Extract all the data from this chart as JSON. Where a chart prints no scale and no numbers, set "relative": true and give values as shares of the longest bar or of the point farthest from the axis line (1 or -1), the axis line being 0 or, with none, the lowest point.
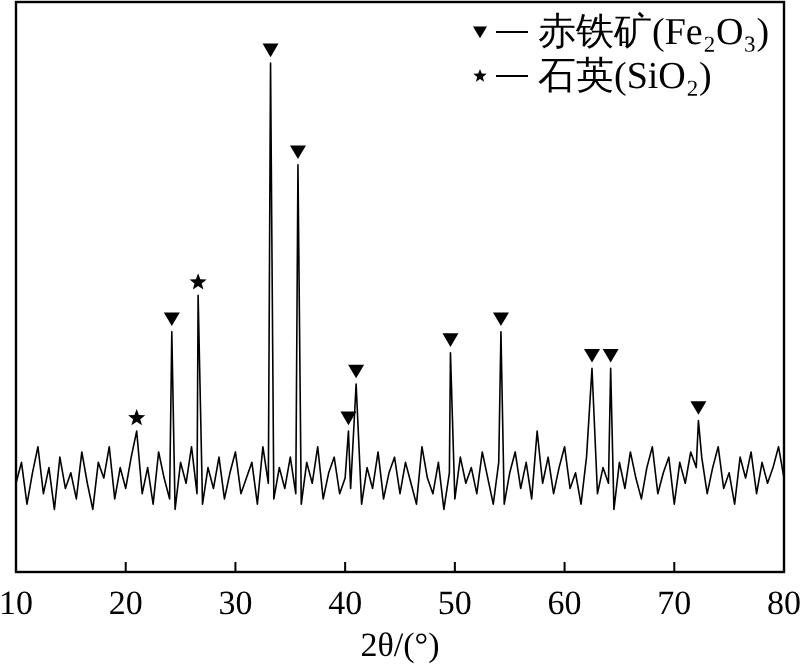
{
  "chart_data": {
    "type": "line",
    "relative": true,
    "xlabel": "2θ/(°)",
    "xlim": [
      10,
      80
    ],
    "xticks": [
      10,
      20,
      30,
      40,
      50,
      60,
      70,
      80
    ],
    "legend": "top right",
    "tick_labels": "x",
    "series": [
      {
        "color": "#000000",
        "x": [
          10,
          10.5,
          11,
          11.5,
          12,
          12.5,
          13,
          13.5,
          14,
          14.5,
          15,
          15.5,
          16,
          16.5,
          17,
          17.5,
          18,
          18.5,
          19,
          19.5,
          20,
          20.5,
          21,
          21.5,
          22,
          22.5,
          23,
          23.5,
          24,
          24.2,
          24.5,
          25,
          25.5,
          26,
          26.5,
          26.6,
          27,
          27.5,
          28,
          28.5,
          29,
          29.5,
          30,
          30.5,
          31,
          31.5,
          32,
          32.5,
          33,
          33.2,
          33.5,
          34,
          34.5,
          35,
          35.5,
          35.7,
          36,
          36.5,
          37,
          37.5,
          38,
          38.5,
          39,
          39.5,
          40,
          40.3,
          40.5,
          41,
          41.5,
          42,
          42.5,
          43,
          43.5,
          44,
          44.5,
          45,
          45.5,
          46,
          46.5,
          47,
          47.5,
          48,
          48.5,
          49,
          49.5,
          49.6,
          50,
          50.5,
          51,
          51.5,
          52,
          52.5,
          53,
          53.5,
          54,
          54.2,
          54.5,
          55,
          55.5,
          56,
          56.5,
          57,
          57.5,
          58,
          58.5,
          59,
          59.5,
          60,
          60.5,
          61,
          61.5,
          62,
          62.5,
          63,
          63.5,
          64,
          64.2,
          64.5,
          65,
          65.5,
          66,
          66.5,
          67,
          67.5,
          68,
          68.5,
          69,
          69.5,
          70,
          70.5,
          71,
          71.5,
          72,
          72.2,
          72.5,
          73,
          73.5,
          74,
          74.5,
          75,
          75.5,
          76,
          76.5,
          77,
          77.5,
          78,
          78.5,
          79,
          79.5,
          80
        ],
        "values": [
          0.17,
          0.21,
          0.13,
          0.19,
          0.24,
          0.15,
          0.2,
          0.12,
          0.22,
          0.16,
          0.19,
          0.14,
          0.23,
          0.17,
          0.12,
          0.21,
          0.18,
          0.24,
          0.14,
          0.2,
          0.16,
          0.22,
          0.27,
          0.15,
          0.2,
          0.13,
          0.23,
          0.18,
          0.14,
          0.46,
          0.12,
          0.21,
          0.17,
          0.24,
          0.15,
          0.53,
          0.13,
          0.2,
          0.16,
          0.22,
          0.14,
          0.19,
          0.23,
          0.15,
          0.18,
          0.21,
          0.13,
          0.24,
          0.17,
          0.975,
          0.14,
          0.2,
          0.16,
          0.22,
          0.15,
          0.78,
          0.13,
          0.21,
          0.17,
          0.24,
          0.14,
          0.19,
          0.22,
          0.15,
          0.18,
          0.27,
          0.16,
          0.36,
          0.13,
          0.2,
          0.16,
          0.23,
          0.14,
          0.19,
          0.22,
          0.15,
          0.21,
          0.17,
          0.13,
          0.24,
          0.18,
          0.15,
          0.21,
          0.12,
          0.19,
          0.42,
          0.14,
          0.22,
          0.17,
          0.2,
          0.15,
          0.23,
          0.18,
          0.13,
          0.21,
          0.46,
          0.13,
          0.19,
          0.23,
          0.16,
          0.21,
          0.14,
          0.27,
          0.17,
          0.22,
          0.15,
          0.2,
          0.24,
          0.16,
          0.19,
          0.13,
          0.22,
          0.39,
          0.15,
          0.2,
          0.17,
          0.39,
          0.12,
          0.21,
          0.16,
          0.23,
          0.18,
          0.14,
          0.2,
          0.24,
          0.15,
          0.19,
          0.22,
          0.13,
          0.21,
          0.17,
          0.23,
          0.2,
          0.29,
          0.22,
          0.15,
          0.2,
          0.24,
          0.16,
          0.19,
          0.13,
          0.22,
          0.18,
          0.23,
          0.15,
          0.21,
          0.17,
          0.2,
          0.24,
          0.18
        ]
      },
      {
        "type": "scatter",
        "name": "赤铁矿(Fe₂O₃)",
        "color": "#000000",
        "marker": "triangle",
        "x": [
          24.2,
          33.2,
          35.7,
          40.3,
          41.0,
          49.6,
          54.2,
          62.5,
          64.2,
          72.2
        ],
        "values": [
          0.485,
          1.0,
          0.805,
          0.295,
          0.385,
          0.445,
          0.485,
          0.415,
          0.415,
          0.315
        ]
      },
      {
        "type": "scatter",
        "name": "石英(SiO₂)",
        "color": "#000000",
        "marker": "star",
        "x": [
          21.0,
          26.6
        ],
        "values": [
          0.295,
          0.555
        ]
      }
    ]
  }
}
